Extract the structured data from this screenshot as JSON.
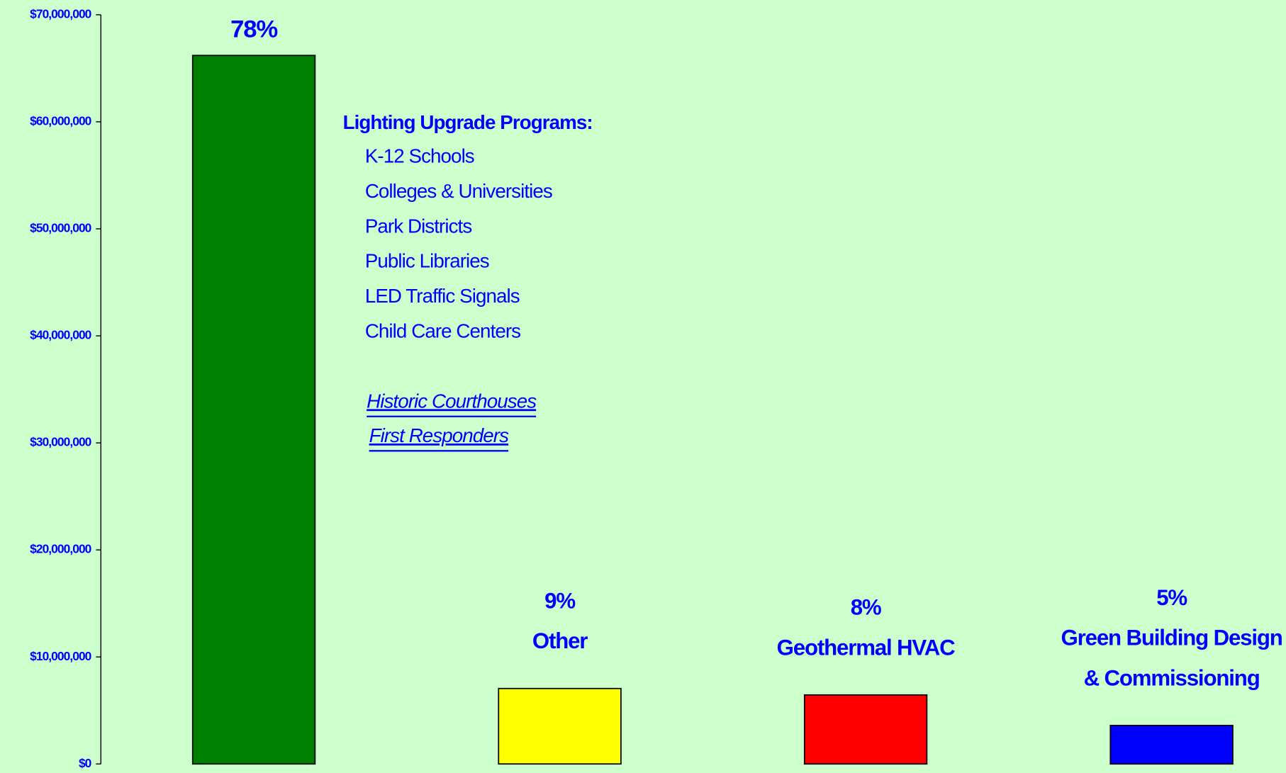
{
  "chart_data": {
    "type": "bar",
    "categories": [
      null,
      "Other",
      "Geothermal HVAC",
      [
        "Green Building Design",
        "& Commissioning"
      ]
    ],
    "values": [
      66200000,
      7050000,
      6450000,
      3600000
    ],
    "percent_labels": [
      "78%",
      "9%",
      "8%",
      "5%"
    ],
    "colors": [
      "#008000",
      "#ffff00",
      "#ff0000",
      "#0000ff"
    ],
    "ylim": [
      0,
      70000000
    ],
    "yticks": [
      {
        "value": 0,
        "label": "$0"
      },
      {
        "value": 10000000,
        "label": "$10,000,000"
      },
      {
        "value": 20000000,
        "label": "$20,000,000"
      },
      {
        "value": 30000000,
        "label": "$30,000,000"
      },
      {
        "value": 40000000,
        "label": "$40,000,000"
      },
      {
        "value": 50000000,
        "label": "$50,000,000"
      },
      {
        "value": 60000000,
        "label": "$60,000,000"
      },
      {
        "value": 70000000,
        "label": "$70,000,000"
      }
    ],
    "annotation": {
      "heading": "Lighting Upgrade Programs:",
      "items": [
        "K-12 Schools",
        "Colleges & Universities",
        "Park Districts",
        "Public Libraries",
        "LED Traffic Signals",
        "Child Care Centers"
      ],
      "links": [
        "Historic Courthouses",
        "First Responders"
      ]
    }
  }
}
